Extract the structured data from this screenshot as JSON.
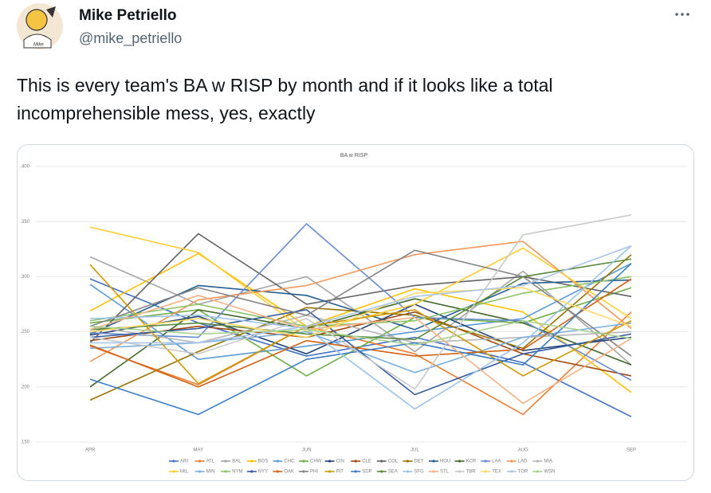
{
  "tweet": {
    "name": "Mike Petriello",
    "handle": "@mike_petriello",
    "text_lines": [
      "This is every team's BA w RISP by month and if it looks like a total",
      "incomprehensible mess, yes, exactly"
    ]
  },
  "chart_data": {
    "type": "line",
    "title": "BA w RISP",
    "categories": [
      "APR",
      "MAY",
      "JUN",
      "JUL",
      "AUG",
      "SEP"
    ],
    "ylim": [
      0.15,
      0.4
    ],
    "yticks": [
      {
        "value": 0.15,
        "label": ".150"
      },
      {
        "value": 0.2,
        "label": ".200"
      },
      {
        "value": 0.25,
        "label": ".250"
      },
      {
        "value": 0.3,
        "label": ".300"
      },
      {
        "value": 0.35,
        "label": ".350"
      },
      {
        "value": 0.4,
        "label": ".400"
      }
    ],
    "grid": true,
    "legend": "bottom",
    "series": [
      {
        "name": "ARI",
        "color": "#4472c4",
        "values": [
          0.298,
          0.258,
          0.228,
          0.245,
          0.222,
          0.173
        ]
      },
      {
        "name": "ATL",
        "color": "#ed7d31",
        "values": [
          0.237,
          0.202,
          0.255,
          0.23,
          0.175,
          0.268
        ]
      },
      {
        "name": "BAL",
        "color": "#a5a5a5",
        "values": [
          0.318,
          0.275,
          0.3,
          0.232,
          0.305,
          0.22
        ]
      },
      {
        "name": "BOS",
        "color": "#ffc000",
        "values": [
          0.269,
          0.321,
          0.255,
          0.289,
          0.268,
          0.195
        ]
      },
      {
        "name": "CHC",
        "color": "#5b9bd5",
        "values": [
          0.293,
          0.225,
          0.237,
          0.25,
          0.262,
          0.312
        ]
      },
      {
        "name": "CHW",
        "color": "#70ad47",
        "values": [
          0.258,
          0.27,
          0.21,
          0.263,
          0.258,
          0.29
        ]
      },
      {
        "name": "CIN",
        "color": "#264478",
        "values": [
          0.247,
          0.264,
          0.23,
          0.275,
          0.233,
          0.245
        ]
      },
      {
        "name": "CLE",
        "color": "#9e480e",
        "values": [
          0.242,
          0.255,
          0.245,
          0.268,
          0.23,
          0.21
        ]
      },
      {
        "name": "COL",
        "color": "#636363",
        "values": [
          0.24,
          0.339,
          0.275,
          0.292,
          0.3,
          0.282
        ]
      },
      {
        "name": "DET",
        "color": "#997300",
        "values": [
          0.188,
          0.232,
          0.272,
          0.265,
          0.235,
          0.32
        ]
      },
      {
        "name": "HOU",
        "color": "#255e91",
        "values": [
          0.248,
          0.292,
          0.283,
          0.252,
          0.294,
          0.297
        ]
      },
      {
        "name": "KCR",
        "color": "#43682b",
        "values": [
          0.2,
          0.27,
          0.253,
          0.28,
          0.258,
          0.22
        ]
      },
      {
        "name": "LAA",
        "color": "#698ed0",
        "values": [
          0.249,
          0.245,
          0.348,
          0.263,
          0.26,
          0.206
        ]
      },
      {
        "name": "LAD",
        "color": "#f1975a",
        "values": [
          0.223,
          0.279,
          0.292,
          0.32,
          0.332,
          0.253
        ]
      },
      {
        "name": "MIA",
        "color": "#b7b7b7",
        "values": [
          0.255,
          0.24,
          0.265,
          0.24,
          0.245,
          0.25
        ]
      },
      {
        "name": "MIL",
        "color": "#ffcd33",
        "values": [
          0.345,
          0.322,
          0.25,
          0.275,
          0.326,
          0.262
        ]
      },
      {
        "name": "MIN",
        "color": "#7cafdd",
        "values": [
          0.235,
          0.24,
          0.25,
          0.213,
          0.245,
          0.258
        ]
      },
      {
        "name": "NYM",
        "color": "#8cc168",
        "values": [
          0.26,
          0.275,
          0.255,
          0.26,
          0.285,
          0.3
        ]
      },
      {
        "name": "NYY",
        "color": "#335aa1",
        "values": [
          0.245,
          0.253,
          0.27,
          0.193,
          0.23,
          0.248
        ]
      },
      {
        "name": "OAK",
        "color": "#d26012",
        "values": [
          0.238,
          0.2,
          0.242,
          0.228,
          0.234,
          0.298
        ]
      },
      {
        "name": "PHI",
        "color": "#848484",
        "values": [
          0.255,
          0.29,
          0.265,
          0.324,
          0.3,
          0.228
        ]
      },
      {
        "name": "PIT",
        "color": "#cc9a00",
        "values": [
          0.311,
          0.203,
          0.255,
          0.27,
          0.21,
          0.26
        ]
      },
      {
        "name": "SDP",
        "color": "#3c7dc4",
        "values": [
          0.207,
          0.175,
          0.225,
          0.24,
          0.22,
          0.312
        ]
      },
      {
        "name": "SEA",
        "color": "#5a8a3c",
        "values": [
          0.252,
          0.258,
          0.248,
          0.243,
          0.3,
          0.316
        ]
      },
      {
        "name": "SFG",
        "color": "#9dc3e6",
        "values": [
          0.262,
          0.265,
          0.253,
          0.18,
          0.24,
          0.328
        ]
      },
      {
        "name": "STL",
        "color": "#f4b183",
        "values": [
          0.252,
          0.283,
          0.252,
          0.263,
          0.185,
          0.244
        ]
      },
      {
        "name": "TBR",
        "color": "#c9c9c9",
        "values": [
          0.245,
          0.23,
          0.262,
          0.198,
          0.338,
          0.356
        ]
      },
      {
        "name": "TEX",
        "color": "#ffd966",
        "values": [
          0.25,
          0.262,
          0.245,
          0.285,
          0.29,
          0.255
        ]
      },
      {
        "name": "TOR",
        "color": "#a9c6e8",
        "values": [
          0.24,
          0.24,
          0.255,
          0.282,
          0.292,
          0.328
        ]
      },
      {
        "name": "WSN",
        "color": "#a9d18e",
        "values": [
          0.255,
          0.248,
          0.252,
          0.238,
          0.26,
          0.244
        ]
      }
    ]
  }
}
